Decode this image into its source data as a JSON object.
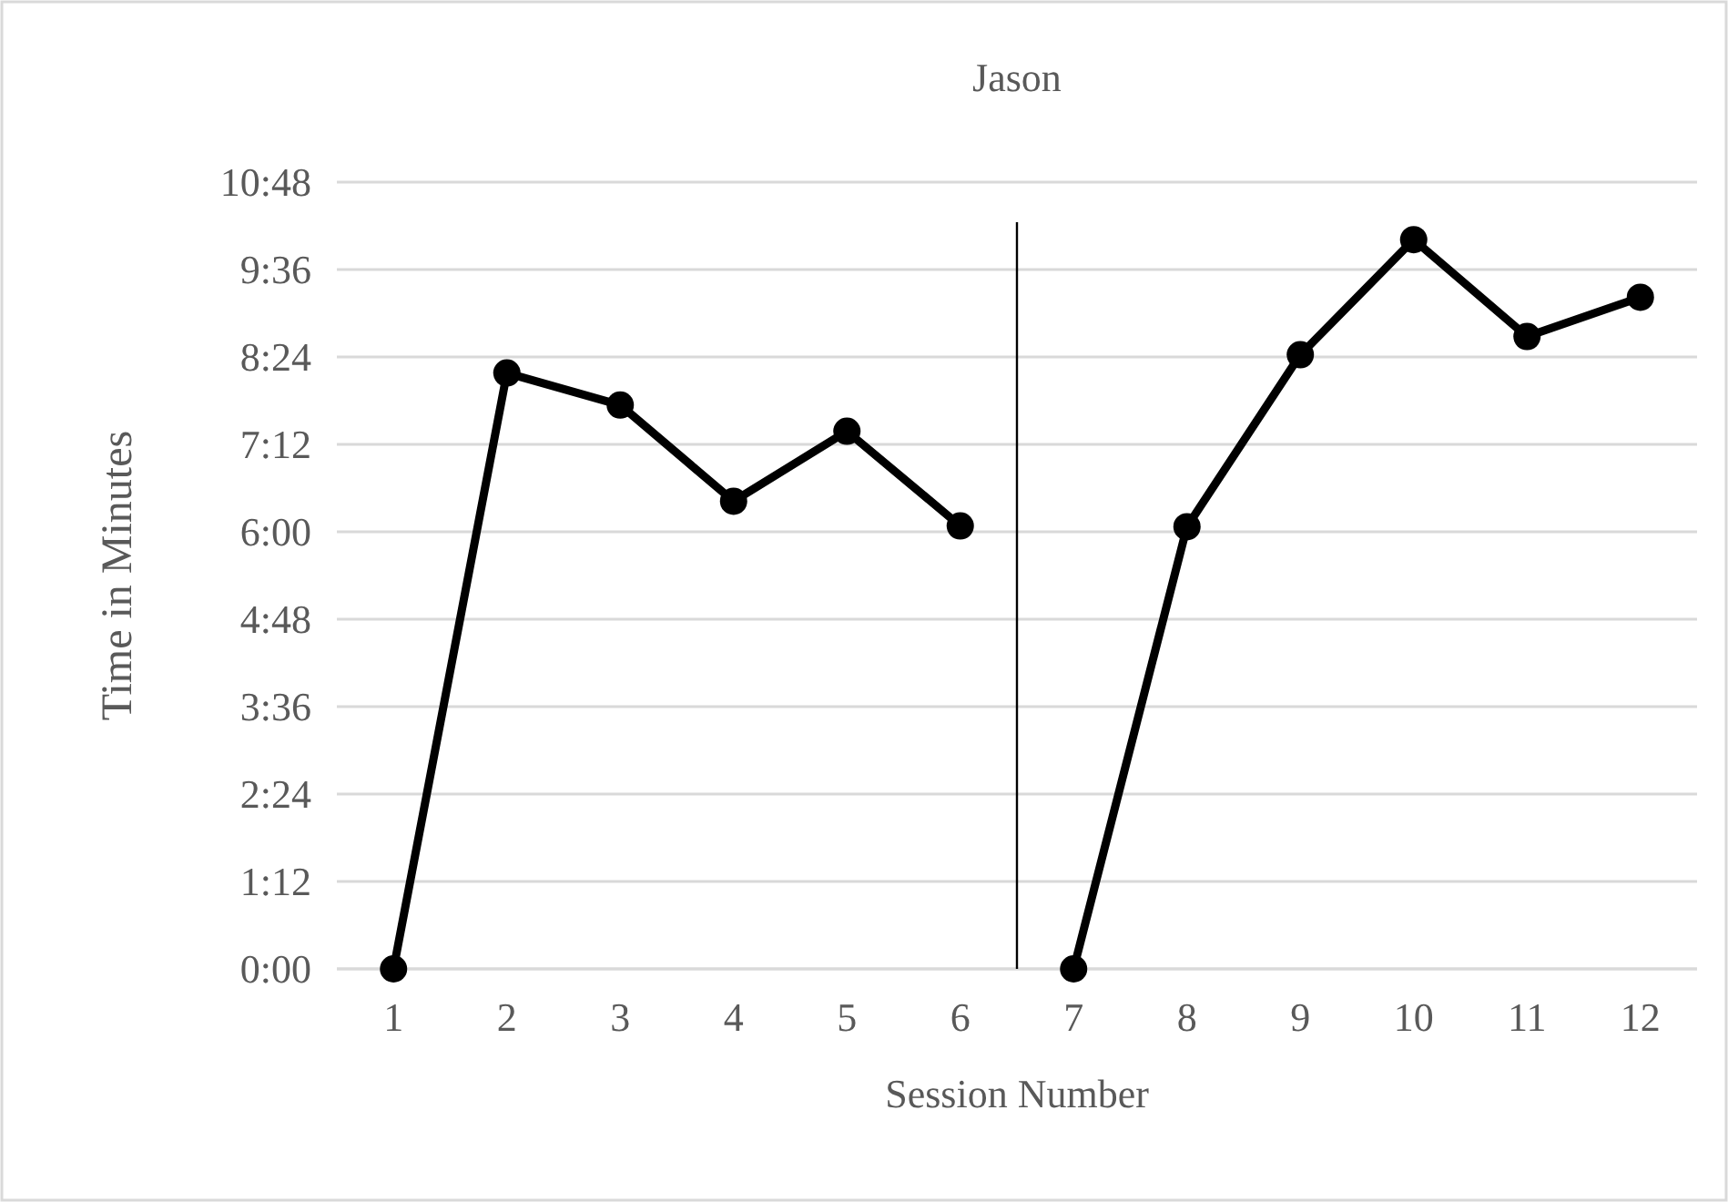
{
  "chart_data": {
    "type": "line",
    "title": "Jason",
    "xlabel": "Session Number",
    "ylabel": "Time in Minutes",
    "series": [
      {
        "color": "#000000",
        "x": [
          1,
          2,
          3,
          4,
          5,
          6
        ],
        "values": [
          0,
          8.18,
          7.74,
          6.42,
          7.38,
          6.08
        ]
      },
      {
        "color": "#000000",
        "x": [
          7,
          8,
          9,
          10,
          11,
          12
        ],
        "values": [
          0,
          6.07,
          8.43,
          10.01,
          8.68,
          9.22
        ]
      }
    ],
    "xlim": [
      0.5,
      12.5
    ],
    "xticks": [
      1,
      2,
      3,
      4,
      5,
      6,
      7,
      8,
      9,
      10,
      11,
      12
    ],
    "ylim": [
      0,
      10.8
    ],
    "yticks": [
      {
        "value": 0,
        "label": "0:00"
      },
      {
        "value": 1.2,
        "label": "1:12"
      },
      {
        "value": 2.4,
        "label": "2:24"
      },
      {
        "value": 3.6,
        "label": "3:36"
      },
      {
        "value": 4.8,
        "label": "4:48"
      },
      {
        "value": 6,
        "label": "6:00"
      },
      {
        "value": 7.2,
        "label": "7:12"
      },
      {
        "value": 8.4,
        "label": "8:24"
      },
      {
        "value": 9.6,
        "label": "9:36"
      },
      {
        "value": 10.8,
        "label": "10:48"
      }
    ],
    "ref_lines": [
      {
        "axis": "x",
        "value": 6.5,
        "color": "#000000"
      }
    ],
    "grid": "y",
    "marker": "circle",
    "line_style": "solid"
  }
}
